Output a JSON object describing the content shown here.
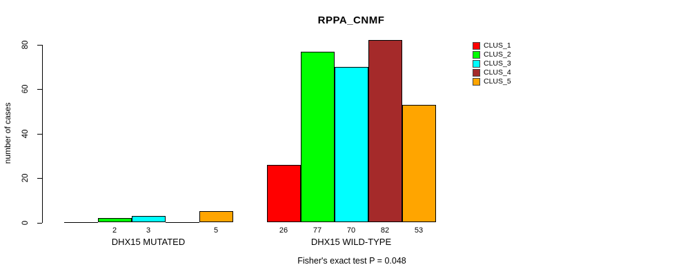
{
  "chart_data": {
    "type": "bar",
    "title": "RPPA_CNMF",
    "ylabel": "number of cases",
    "xlabel": "",
    "ylim": [
      0,
      80
    ],
    "yticks": [
      0,
      20,
      40,
      60,
      80
    ],
    "grid": false,
    "legend_position": "right",
    "bar_value_labels": "shown under each bar for nonzero values",
    "categories": [
      "DHX15 MUTATED",
      "DHX15 WILD-TYPE"
    ],
    "series": [
      {
        "name": "CLUS_1",
        "color": "#FF0000",
        "values": [
          0,
          26
        ]
      },
      {
        "name": "CLUS_2",
        "color": "#00FF00",
        "values": [
          2,
          77
        ]
      },
      {
        "name": "CLUS_3",
        "color": "#00FFFF",
        "values": [
          3,
          70
        ]
      },
      {
        "name": "CLUS_4",
        "color": "#A52A2A",
        "values": [
          0,
          82
        ]
      },
      {
        "name": "CLUS_5",
        "color": "#FFA500",
        "values": [
          5,
          53
        ]
      }
    ],
    "annotation": "Fisher's exact test P = 0.048"
  }
}
